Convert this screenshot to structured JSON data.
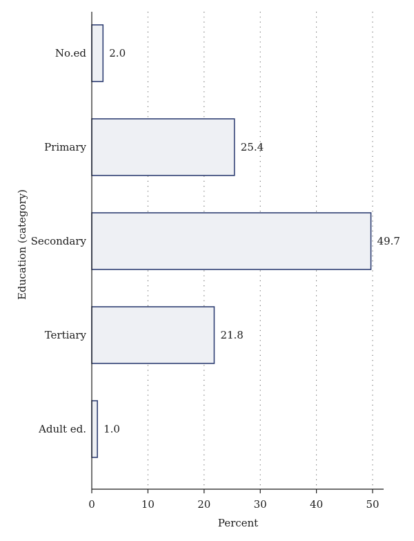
{
  "colors": {
    "bar_fill": "#eef0f4",
    "bar_stroke": "#2f3f73",
    "axis": "#1a1a1a",
    "grid": "#555555"
  },
  "chart_data": {
    "type": "bar",
    "orientation": "horizontal",
    "categories": [
      "No.ed",
      "Primary",
      "Secondary",
      "Tertiary",
      "Adult ed."
    ],
    "values": [
      2.0,
      25.4,
      49.7,
      21.8,
      1.0
    ],
    "value_labels": [
      "2.0",
      "25.4",
      "49.7",
      "21.8",
      "1.0"
    ],
    "xlabel": "Percent",
    "ylabel": "Education (category)",
    "xlim": [
      0,
      52
    ],
    "xticks": [
      0,
      10,
      20,
      30,
      40,
      50
    ],
    "grid": "vertical dotted",
    "legend": "none"
  }
}
